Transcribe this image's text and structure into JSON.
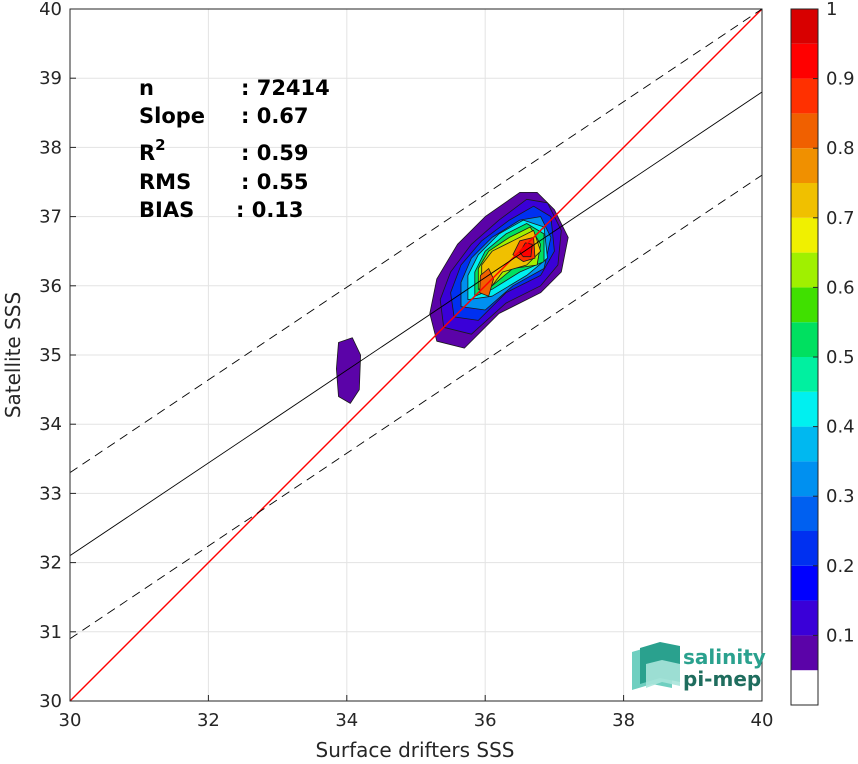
{
  "chart_data": {
    "type": "heatmap",
    "xlabel": "Surface drifters SSS",
    "ylabel": "Satellite SSS",
    "xlim": [
      30,
      40
    ],
    "ylim": [
      30,
      40
    ],
    "x_ticks": [
      "30",
      "32",
      "34",
      "36",
      "38",
      "40"
    ],
    "y_ticks": [
      "30",
      "31",
      "32",
      "33",
      "34",
      "35",
      "36",
      "37",
      "38",
      "39",
      "40"
    ],
    "grid": true,
    "stats": [
      {
        "label": "n",
        "value": ": 72414"
      },
      {
        "label": "Slope",
        "value": ": 0.67"
      },
      {
        "label": "R",
        "sup": "2",
        "value": ": 0.59"
      },
      {
        "label": "RMS",
        "value": ": 0.55"
      },
      {
        "label": "BIAS",
        "value": ": 0.13"
      }
    ],
    "reference_lines": [
      {
        "name": "one-to-one",
        "color": "#ff0000",
        "style": "solid",
        "slope": 1,
        "intercept": 0
      },
      {
        "name": "regression",
        "color": "#000000",
        "style": "solid",
        "points": [
          [
            30,
            32.1
          ],
          [
            40,
            38.8
          ]
        ]
      },
      {
        "name": "upper-bound",
        "color": "#000000",
        "style": "dashed",
        "points": [
          [
            30,
            33.3
          ],
          [
            40,
            40.0
          ]
        ]
      },
      {
        "name": "lower-bound",
        "color": "#000000",
        "style": "dashed",
        "points": [
          [
            30,
            30.9
          ],
          [
            40,
            37.6
          ]
        ]
      }
    ],
    "density_blobs": [
      {
        "name": "main-cluster",
        "levels": [
          {
            "level": 0.05,
            "points": [
              [
                35.3,
                35.2
              ],
              [
                35.2,
                35.6
              ],
              [
                35.3,
                36.1
              ],
              [
                35.6,
                36.6
              ],
              [
                36.0,
                37.0
              ],
              [
                36.5,
                37.35
              ],
              [
                36.75,
                37.35
              ],
              [
                37.0,
                37.1
              ],
              [
                37.2,
                36.7
              ],
              [
                37.1,
                36.2
              ],
              [
                36.8,
                35.9
              ],
              [
                36.2,
                35.6
              ],
              [
                35.7,
                35.1
              ]
            ]
          },
          {
            "level": 0.1,
            "points": [
              [
                35.4,
                35.4
              ],
              [
                35.35,
                35.8
              ],
              [
                35.5,
                36.2
              ],
              [
                35.8,
                36.6
              ],
              [
                36.2,
                36.95
              ],
              [
                36.6,
                37.25
              ],
              [
                36.9,
                37.2
              ],
              [
                37.1,
                36.8
              ],
              [
                37.05,
                36.3
              ],
              [
                36.8,
                36.0
              ],
              [
                36.3,
                35.75
              ],
              [
                35.8,
                35.3
              ]
            ]
          },
          {
            "level": 0.2,
            "points": [
              [
                35.55,
                35.55
              ],
              [
                35.5,
                35.9
              ],
              [
                35.65,
                36.3
              ],
              [
                35.95,
                36.65
              ],
              [
                36.35,
                36.95
              ],
              [
                36.7,
                37.15
              ],
              [
                36.95,
                37.0
              ],
              [
                37.0,
                36.5
              ],
              [
                36.8,
                36.15
              ],
              [
                36.3,
                35.9
              ],
              [
                35.9,
                35.5
              ]
            ]
          },
          {
            "level": 0.3,
            "points": [
              [
                35.65,
                35.7
              ],
              [
                35.65,
                36.05
              ],
              [
                35.8,
                36.4
              ],
              [
                36.1,
                36.7
              ],
              [
                36.5,
                36.95
              ],
              [
                36.8,
                37.0
              ],
              [
                36.95,
                36.7
              ],
              [
                36.85,
                36.25
              ],
              [
                36.4,
                36.0
              ],
              [
                36.0,
                35.65
              ]
            ]
          },
          {
            "level": 0.4,
            "points": [
              [
                35.75,
                35.8
              ],
              [
                35.75,
                36.15
              ],
              [
                35.9,
                36.45
              ],
              [
                36.2,
                36.75
              ],
              [
                36.55,
                36.95
              ],
              [
                36.85,
                36.85
              ],
              [
                36.9,
                36.4
              ],
              [
                36.6,
                36.15
              ],
              [
                36.1,
                35.85
              ]
            ]
          },
          {
            "level": 0.5,
            "points": [
              [
                35.85,
                35.85
              ],
              [
                35.85,
                36.2
              ],
              [
                36.0,
                36.5
              ],
              [
                36.3,
                36.75
              ],
              [
                36.6,
                36.9
              ],
              [
                36.85,
                36.75
              ],
              [
                36.85,
                36.35
              ],
              [
                36.5,
                36.2
              ],
              [
                36.1,
                35.95
              ]
            ]
          },
          {
            "level": 0.6,
            "points": [
              [
                35.9,
                35.95
              ],
              [
                35.9,
                36.25
              ],
              [
                36.05,
                36.5
              ],
              [
                36.35,
                36.7
              ],
              [
                36.65,
                36.85
              ],
              [
                36.8,
                36.6
              ],
              [
                36.75,
                36.3
              ],
              [
                36.4,
                36.25
              ],
              [
                36.1,
                36.0
              ]
            ]
          },
          {
            "level": 0.7,
            "points": [
              [
                35.95,
                36.0
              ],
              [
                35.95,
                36.3
              ],
              [
                36.1,
                36.5
              ],
              [
                36.4,
                36.65
              ],
              [
                36.7,
                36.8
              ],
              [
                36.8,
                36.5
              ],
              [
                36.6,
                36.3
              ],
              [
                36.25,
                36.2
              ],
              [
                36.1,
                36.0
              ]
            ]
          },
          {
            "level": 0.8,
            "points": [
              [
                35.92,
                35.9
              ],
              [
                35.93,
                36.15
              ],
              [
                36.05,
                36.25
              ],
              [
                36.12,
                36.1
              ],
              [
                36.05,
                35.85
              ]
            ]
          },
          {
            "level": 0.85,
            "points": [
              [
                36.4,
                36.45
              ],
              [
                36.5,
                36.65
              ],
              [
                36.7,
                36.7
              ],
              [
                36.72,
                36.4
              ],
              [
                36.55,
                36.35
              ]
            ]
          },
          {
            "level": 0.92,
            "points": [
              [
                36.5,
                36.48
              ],
              [
                36.58,
                36.62
              ],
              [
                36.68,
                36.6
              ],
              [
                36.66,
                36.42
              ],
              [
                36.55,
                36.42
              ]
            ]
          }
        ]
      },
      {
        "name": "small-cluster",
        "levels": [
          {
            "level": 0.05,
            "points": [
              [
                33.88,
                35.18
              ],
              [
                34.08,
                35.25
              ],
              [
                34.2,
                35.0
              ],
              [
                34.18,
                34.5
              ],
              [
                34.05,
                34.3
              ],
              [
                33.88,
                34.4
              ],
              [
                33.85,
                34.8
              ]
            ]
          }
        ]
      }
    ],
    "colorbar": {
      "levels": [
        0.05,
        0.1,
        0.15,
        0.2,
        0.25,
        0.3,
        0.35,
        0.4,
        0.45,
        0.5,
        0.55,
        0.6,
        0.65,
        0.7,
        0.75,
        0.8,
        0.85,
        0.9,
        0.95,
        1.0
      ],
      "colors": [
        "#5b03a8",
        "#3a00d8",
        "#0000ff",
        "#0030f0",
        "#0060f0",
        "#0090f0",
        "#00b8f0",
        "#00f0f0",
        "#00f0a0",
        "#00e060",
        "#40e000",
        "#a0f000",
        "#f0f000",
        "#f0c000",
        "#f09000",
        "#f06000",
        "#ff3000",
        "#ff0000",
        "#d80000",
        "#a00000"
      ],
      "tick_labels": [
        "0.1",
        "0.2",
        "0.3",
        "0.4",
        "0.5",
        "0.6",
        "0.7",
        "0.8",
        "0.9",
        "1"
      ],
      "tick_values": [
        0.1,
        0.2,
        0.3,
        0.4,
        0.5,
        0.6,
        0.7,
        0.8,
        0.9,
        1.0
      ]
    }
  },
  "logo": {
    "line1": "salinity",
    "line2": "pi-mep",
    "color1": "#2aa18e",
    "color2": "#1f6d5e"
  }
}
